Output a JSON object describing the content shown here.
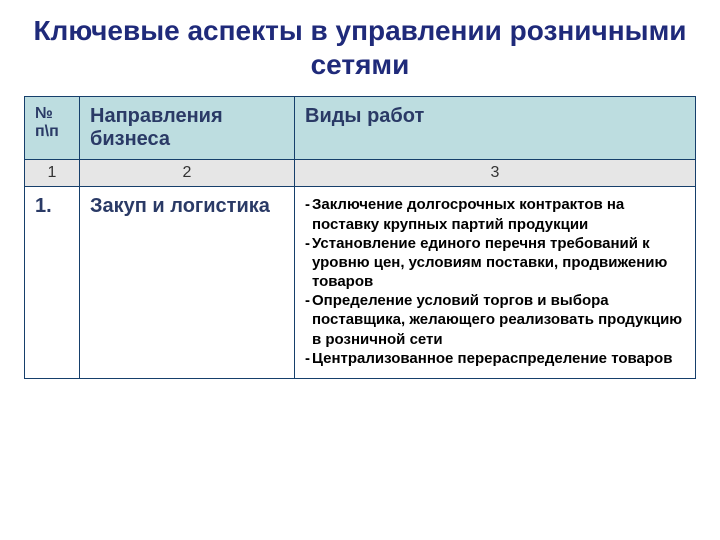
{
  "title": "Ключевые аспекты в управлении розничными сетями",
  "title_color": "#1f2a7a",
  "title_fontsize": 28,
  "table": {
    "border_color": "#163f6b",
    "header_bg": "#bddde0",
    "header_text_color": "#2a3a66",
    "numrow_bg": "#e6e6e6",
    "numrow_text_color": "#333333",
    "body_bg": "#ffffff",
    "body_accent_color": "#2a3a66",
    "body_text_color": "#000000",
    "col_widths": [
      "55px",
      "215px",
      "auto"
    ],
    "header_fontsize": 20,
    "numrow_fontsize": 16,
    "body_num_fontsize": 20,
    "body_dir_fontsize": 20,
    "body_works_fontsize": 15,
    "headers": {
      "col1": "№ п\\п",
      "col2": "Направления бизнеса",
      "col3": "Виды работ"
    },
    "num_row": {
      "c1": "1",
      "c2": "2",
      "c3": "3"
    },
    "rows": [
      {
        "num": "1.",
        "direction": "Закуп и логистика",
        "works": [
          "Заключение долгосрочных контрактов на поставку крупных партий продукции",
          "Установление единого перечня требований к уровню цен, условиям поставки, продвижению товаров",
          "Определение условий торгов и выбора поставщика, желающего реализовать продукцию в розничной сети",
          "Централизованное перераспределение товаров"
        ]
      }
    ]
  }
}
